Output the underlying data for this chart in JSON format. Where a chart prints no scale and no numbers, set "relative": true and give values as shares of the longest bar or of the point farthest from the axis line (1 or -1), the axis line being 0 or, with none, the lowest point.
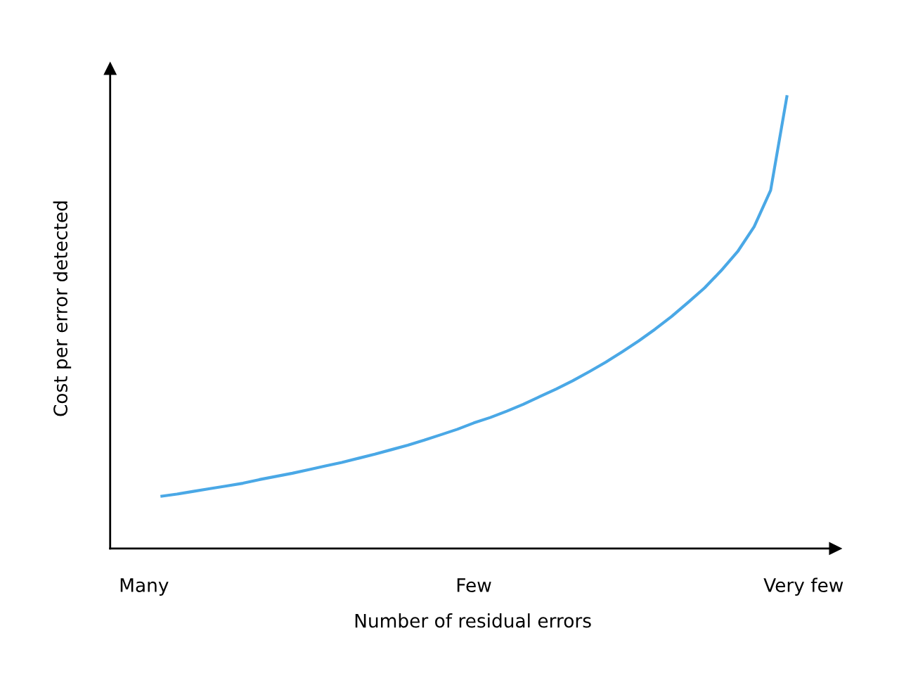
{
  "chart_data": {
    "type": "line",
    "relative": true,
    "xlabel": "Number of residual errors",
    "ylabel": "Cost per error detected",
    "categories": [
      "Many",
      null,
      null,
      null,
      null,
      null,
      null,
      null,
      null,
      null,
      null,
      null,
      null,
      null,
      null,
      null,
      null,
      null,
      null,
      null,
      "Few",
      null,
      null,
      null,
      null,
      null,
      null,
      null,
      null,
      null,
      null,
      null,
      null,
      null,
      null,
      null,
      null,
      null,
      null,
      null,
      "Very few"
    ],
    "series": [
      {
        "color": "#4aa8e6",
        "values": [
          null,
          0.115,
          0.12,
          0.126,
          0.132,
          0.138,
          0.144,
          0.152,
          0.159,
          0.166,
          0.174,
          0.182,
          0.19,
          0.199,
          0.208,
          0.218,
          0.228,
          0.239,
          0.251,
          0.263,
          0.277,
          0.289,
          0.303,
          0.318,
          0.335,
          0.352,
          0.37,
          0.39,
          0.411,
          0.434,
          0.458,
          0.484,
          0.512,
          0.543,
          0.575,
          0.613,
          0.655,
          0.71,
          0.79,
          1.0,
          null
        ]
      }
    ],
    "grid": false,
    "legend": false,
    "marker": "none",
    "line_style": "solid"
  }
}
